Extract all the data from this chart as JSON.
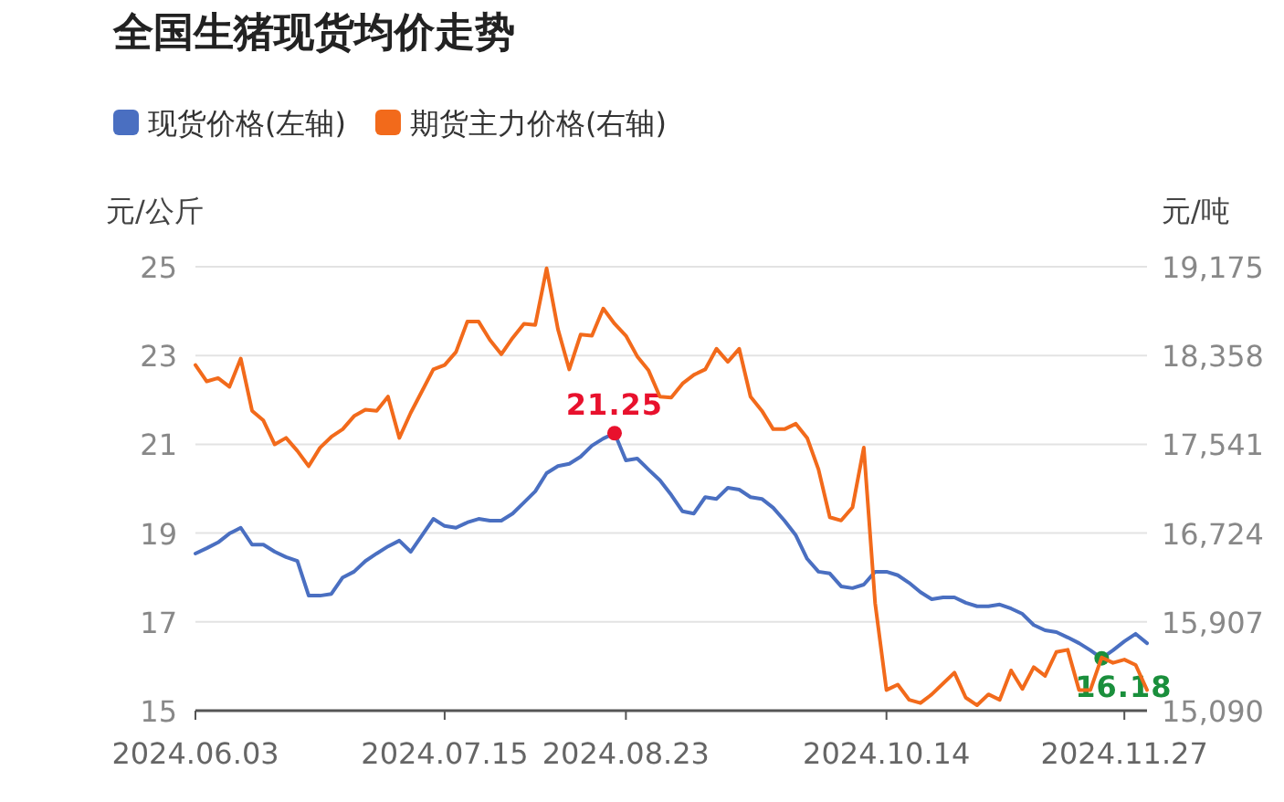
{
  "chart_data": {
    "type": "line",
    "title": "全国生猪现货均价走势",
    "ylabel": "元/公斤",
    "y2label": "元/吨",
    "categories": [
      "2024.06.03",
      null,
      null,
      null,
      null,
      null,
      null,
      null,
      null,
      null,
      null,
      null,
      null,
      null,
      null,
      null,
      null,
      null,
      null,
      null,
      null,
      null,
      "2024.07.15",
      null,
      null,
      null,
      null,
      null,
      null,
      null,
      null,
      null,
      null,
      null,
      null,
      null,
      null,
      null,
      "2024.08.23",
      null,
      null,
      null,
      null,
      null,
      null,
      null,
      null,
      null,
      null,
      null,
      null,
      null,
      null,
      null,
      null,
      null,
      null,
      null,
      null,
      null,
      null,
      "2024.10.14",
      null,
      null,
      null,
      null,
      null,
      null,
      null,
      null,
      null,
      null,
      null,
      null,
      null,
      null,
      null,
      null,
      null,
      null,
      null,
      null,
      "2024.11.27",
      null,
      null
    ],
    "series": [
      {
        "name": "现货价格(左轴)",
        "color": "#4a6fc1",
        "values": [
          18.54,
          18.66,
          18.79,
          18.99,
          19.12,
          18.74,
          18.74,
          18.58,
          18.46,
          18.37,
          17.59,
          17.59,
          17.63,
          18.0,
          18.13,
          18.37,
          18.54,
          18.7,
          18.83,
          18.58,
          18.95,
          19.32,
          19.16,
          19.12,
          19.24,
          19.32,
          19.28,
          19.28,
          19.44,
          19.69,
          19.94,
          20.35,
          20.51,
          20.56,
          20.72,
          20.97,
          21.13,
          21.25,
          20.64,
          20.68,
          20.43,
          20.19,
          19.86,
          19.49,
          19.44,
          19.81,
          19.77,
          20.02,
          19.98,
          19.81,
          19.77,
          19.57,
          19.28,
          18.95,
          18.42,
          18.13,
          18.09,
          17.8,
          17.76,
          17.84,
          18.13,
          18.13,
          18.05,
          17.88,
          17.67,
          17.51,
          17.55,
          17.55,
          17.43,
          17.35,
          17.35,
          17.39,
          17.3,
          17.18,
          16.93,
          16.81,
          16.77,
          16.65,
          16.52,
          16.36,
          16.18,
          16.36,
          16.56,
          16.73,
          16.52
        ],
        "value_labels": [
          null,
          null,
          null,
          null,
          null,
          null,
          null,
          null,
          null,
          null,
          null,
          null,
          null,
          null,
          null,
          null,
          null,
          null,
          null,
          null,
          null,
          null,
          null,
          null,
          null,
          null,
          null,
          null,
          null,
          null,
          null,
          null,
          null,
          null,
          null,
          null,
          null,
          "21.25",
          null,
          null,
          null,
          null,
          null,
          null,
          null,
          null,
          null,
          null,
          null,
          null,
          null,
          null,
          null,
          null,
          null,
          null,
          null,
          null,
          null,
          null,
          null,
          null,
          null,
          null,
          null,
          null,
          null,
          null,
          null,
          null,
          null,
          null,
          null,
          null,
          null,
          null,
          null,
          null,
          null,
          null,
          "16.18",
          null,
          null,
          null,
          null
        ]
      },
      {
        "name": "期货主力价格(右轴)",
        "color": "#f26a1b",
        "axis": "y2",
        "values": [
          18270,
          18120,
          18150,
          18070,
          18330,
          17850,
          17760,
          17540,
          17600,
          17480,
          17340,
          17510,
          17610,
          17680,
          17800,
          17860,
          17850,
          17980,
          17600,
          17830,
          18030,
          18230,
          18270,
          18390,
          18670,
          18670,
          18500,
          18370,
          18520,
          18650,
          18640,
          19160,
          18600,
          18230,
          18550,
          18540,
          18790,
          18650,
          18540,
          18350,
          18220,
          17980,
          17970,
          18100,
          18180,
          18230,
          18420,
          18300,
          18420,
          17980,
          17850,
          17680,
          17680,
          17730,
          17600,
          17310,
          16870,
          16840,
          16960,
          17510,
          16080,
          15280,
          15330,
          15190,
          15160,
          15240,
          15340,
          15440,
          15210,
          15140,
          15240,
          15190,
          15460,
          15290,
          15490,
          15410,
          15630,
          15650,
          15280,
          15280,
          15580,
          15530,
          15560,
          15510,
          15280
        ]
      }
    ],
    "ylim": [
      15,
      25
    ],
    "yticks": [
      15,
      17,
      19,
      21,
      23,
      25
    ],
    "y2lim": [
      15090,
      19175
    ],
    "y2ticks": [
      {
        "value": 15090,
        "label": "15,090"
      },
      {
        "value": 15907,
        "label": "15,907"
      },
      {
        "value": 16724,
        "label": "16,724"
      },
      {
        "value": 17541,
        "label": "17,541"
      },
      {
        "value": 18358,
        "label": "18,358"
      },
      {
        "value": 19175,
        "label": "19,175"
      }
    ],
    "grid": "y",
    "legend": "top left",
    "marker": "none",
    "line_style": "solid"
  }
}
